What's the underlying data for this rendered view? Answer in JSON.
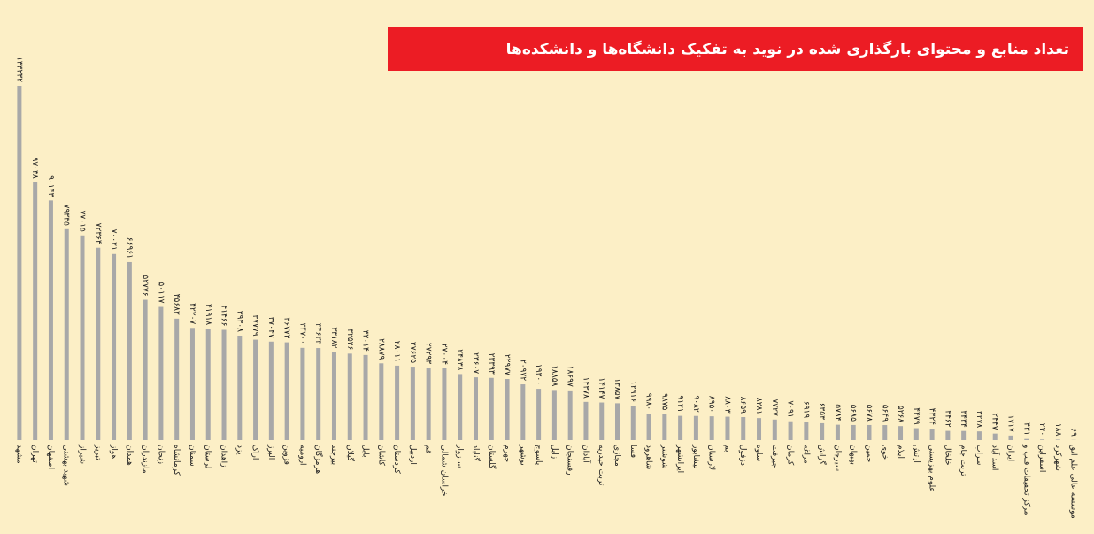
{
  "chart_data": {
    "type": "bar",
    "title": "تعداد منابع و محتوای بارگذاری شده در نوید به تفکیک دانشگاه‌ها و دانشکده‌ها",
    "color": "#a8a8a8",
    "categories": [
      "مشهد",
      "تهران",
      "اصفهان",
      "شهید بهشتی",
      "شیراز",
      "تبریز",
      "اهواز",
      "همدان",
      "مازندران",
      "زنجان",
      "کرمانشاه",
      "سمنان",
      "لرستان",
      "زاهدان",
      "یزد",
      "اراک",
      "البرز",
      "قزوین",
      "ارومیه",
      "هرمزگان",
      "بیرجند",
      "گیلان",
      "بابل",
      "کاشان",
      "کردستان",
      "اردبیل",
      "قم",
      "خراسان شمالی",
      "سبزوار",
      "گناباد",
      "گلستان",
      "جهرم",
      "بوشهر",
      "یاسوج",
      "زابل",
      "رفسنجان",
      "آبادان",
      "تربت حیدریه",
      "مجازی",
      "فسا",
      "شاهرود",
      "شوشتر",
      "ایرانشهر",
      "نیشابور",
      "لارستان",
      "بم",
      "دزفول",
      "ساوه",
      "جیرفت",
      "کرمان",
      "مراغه",
      "گراش",
      "سیرجان",
      "بهبهان",
      "خمین",
      "خوی",
      "ایلام",
      "ارتش",
      "علوم بهزیستی",
      "خلخال",
      "تربت جام",
      "سراب",
      "اسد آباد",
      "ایران",
      "مرکز تحقیقات قلب و",
      "اسفراین",
      "شهرکرد",
      "موسسه عالی علم انق"
    ],
    "values": [
      133232,
      97038,
      90143,
      79335,
      77015,
      72364,
      70021,
      66961,
      52776,
      50117,
      45682,
      42207,
      41918,
      41466,
      39308,
      37779,
      37047,
      36774,
      34700,
      34633,
      33182,
      32526,
      32014,
      28879,
      28011,
      27625,
      27293,
      27004,
      24838,
      23607,
      23393,
      22977,
      20972,
      19300,
      18858,
      18697,
      14378,
      14147,
      13857,
      12916,
      9980,
      9875,
      9121,
      9082,
      8950,
      8803,
      8659,
      8281,
      7727,
      7091,
      6919,
      6353,
      5784,
      5685,
      5678,
      5649,
      5268,
      4479,
      4324,
      3462,
      3434,
      3278,
      2447,
      1717,
      431,
      240,
      188,
      69
    ],
    "value_labels": [
      "۱۳۳۲۳۲",
      "۹۷۰۳۸",
      "۹۰۱۴۳",
      "۷۹۳۳۵",
      "۷۷۰۱۵",
      "۷۲۳۶۴",
      "۷۰۰۲۱",
      "۶۶۹۶۱",
      "۵۲۷۷۶",
      "۵۰۱۱۷",
      "۴۵۶۸۲",
      "۴۲۲۰۷",
      "۴۱۹۱۸",
      "۴۱۴۶۶",
      "۳۹۳۰۸",
      "۳۷۷۷۹",
      "۳۷۰۴۷",
      "۳۶۷۷۴",
      "۳۴۷۰۰",
      "۳۴۶۳۳",
      "۳۳۱۸۲",
      "۳۲۵۲۶",
      "۳۲۰۱۴",
      "۲۸۸۷۹",
      "۲۸۰۱۱",
      "۲۷۶۲۵",
      "۲۷۲۹۳",
      "۲۷۰۰۴",
      "۲۴۸۳۸",
      "۲۳۶۰۷",
      "۲۳۳۹۳",
      "۲۲۹۷۷",
      "۲۰۹۷۲",
      "۱۹۳۰۰",
      "۱۸۸۵۸",
      "۱۸۶۹۷",
      "۱۴۳۷۸",
      "۱۴۱۴۷",
      "۱۳۸۵۷",
      "۱۲۹۱۶",
      "۹۹۸۰",
      "۹۸۷۵",
      "۹۱۲۱",
      "۹۰۸۲",
      "۸۹۵۰",
      "۸۸۰۳",
      "۸۶۵۹",
      "۸۲۸۱",
      "۷۷۲۷",
      "۷۰۹۱",
      "۶۹۱۹",
      "۶۳۵۳",
      "۵۷۸۴",
      "۵۶۸۵",
      "۵۶۷۸",
      "۵۶۴۹",
      "۵۲۶۸",
      "۴۴۷۹",
      "۴۳۲۴",
      "۳۴۶۲",
      "۳۴۳۴",
      "۳۲۷۸",
      "۲۴۴۷",
      "۱۷۱۷",
      "۴۳۱",
      "۲۴۰",
      "۱۸۸",
      "۶۹"
    ]
  }
}
